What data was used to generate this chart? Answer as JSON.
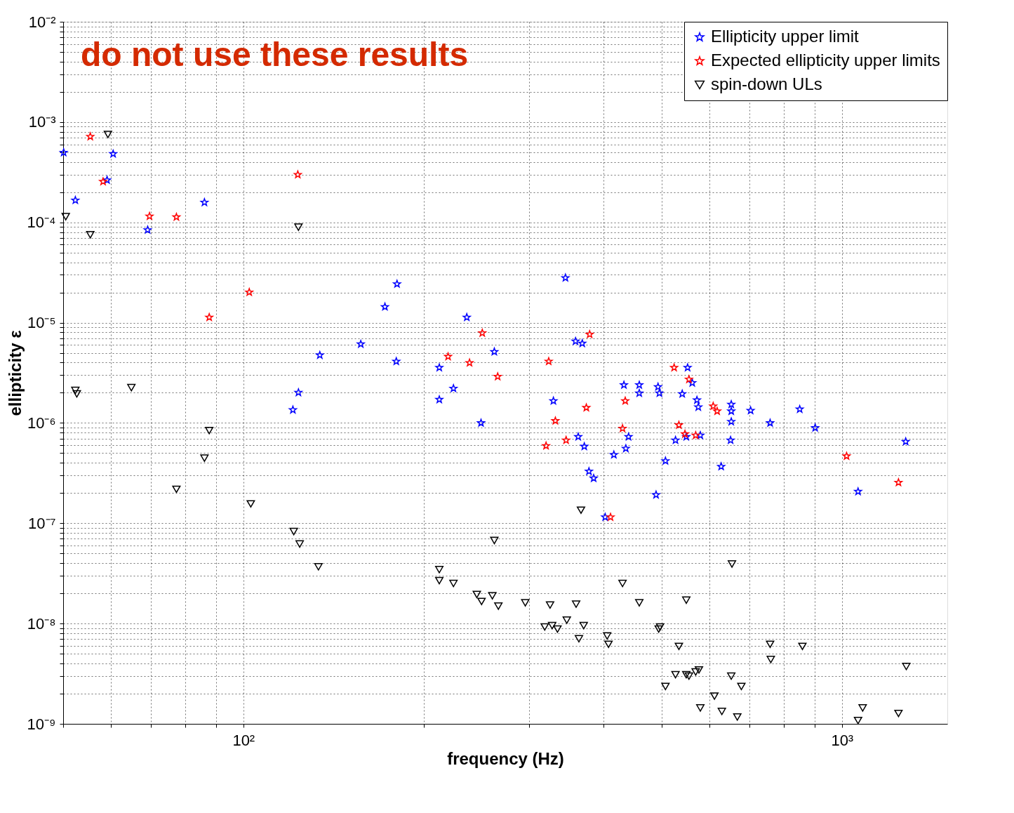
{
  "chart_data": {
    "type": "scatter",
    "xlabel": "frequency (Hz)",
    "ylabel": "ellipticity ε",
    "log": "xy",
    "grid": true,
    "legend": "top right",
    "annotations": [
      "do not use these results"
    ],
    "xlim": [
      50,
      1500
    ],
    "ylim": [
      1e-09,
      0.01
    ],
    "xticks": [
      {
        "value": 50,
        "label": null
      },
      {
        "value": 60,
        "label": null
      },
      {
        "value": 70,
        "label": null
      },
      {
        "value": 80,
        "label": null
      },
      {
        "value": 90,
        "label": null
      },
      {
        "value": 100,
        "label": "10²"
      },
      {
        "value": 200,
        "label": null
      },
      {
        "value": 300,
        "label": null
      },
      {
        "value": 400,
        "label": null
      },
      {
        "value": 500,
        "label": null
      },
      {
        "value": 600,
        "label": null
      },
      {
        "value": 700,
        "label": null
      },
      {
        "value": 800,
        "label": null
      },
      {
        "value": 900,
        "label": null
      },
      {
        "value": 1000,
        "label": "10³"
      }
    ],
    "yticks": [
      {
        "value": 1e-09,
        "label": "10⁻⁹"
      },
      {
        "value": 2e-09,
        "label": null
      },
      {
        "value": 3e-09,
        "label": null
      },
      {
        "value": 4e-09,
        "label": null
      },
      {
        "value": 5e-09,
        "label": null
      },
      {
        "value": 6e-09,
        "label": null
      },
      {
        "value": 7e-09,
        "label": null
      },
      {
        "value": 8e-09,
        "label": null
      },
      {
        "value": 9e-09,
        "label": null
      },
      {
        "value": 1e-08,
        "label": "10⁻⁸"
      },
      {
        "value": 2e-08,
        "label": null
      },
      {
        "value": 3e-08,
        "label": null
      },
      {
        "value": 4e-08,
        "label": null
      },
      {
        "value": 5e-08,
        "label": null
      },
      {
        "value": 6e-08,
        "label": null
      },
      {
        "value": 7e-08,
        "label": null
      },
      {
        "value": 8e-08,
        "label": null
      },
      {
        "value": 9e-08,
        "label": null
      },
      {
        "value": 1e-07,
        "label": "10⁻⁷"
      },
      {
        "value": 2e-07,
        "label": null
      },
      {
        "value": 3e-07,
        "label": null
      },
      {
        "value": 4e-07,
        "label": null
      },
      {
        "value": 5e-07,
        "label": null
      },
      {
        "value": 6e-07,
        "label": null
      },
      {
        "value": 7e-07,
        "label": null
      },
      {
        "value": 8e-07,
        "label": null
      },
      {
        "value": 9e-07,
        "label": null
      },
      {
        "value": 1e-06,
        "label": "10⁻⁶"
      },
      {
        "value": 2e-06,
        "label": null
      },
      {
        "value": 3e-06,
        "label": null
      },
      {
        "value": 4e-06,
        "label": null
      },
      {
        "value": 5e-06,
        "label": null
      },
      {
        "value": 6e-06,
        "label": null
      },
      {
        "value": 7e-06,
        "label": null
      },
      {
        "value": 8e-06,
        "label": null
      },
      {
        "value": 9e-06,
        "label": null
      },
      {
        "value": 1e-05,
        "label": "10⁻⁵"
      },
      {
        "value": 2e-05,
        "label": null
      },
      {
        "value": 3e-05,
        "label": null
      },
      {
        "value": 4e-05,
        "label": null
      },
      {
        "value": 5e-05,
        "label": null
      },
      {
        "value": 6e-05,
        "label": null
      },
      {
        "value": 7e-05,
        "label": null
      },
      {
        "value": 8e-05,
        "label": null
      },
      {
        "value": 9e-05,
        "label": null
      },
      {
        "value": 0.0001,
        "label": "10⁻⁴"
      },
      {
        "value": 0.0002,
        "label": null
      },
      {
        "value": 0.0003,
        "label": null
      },
      {
        "value": 0.0004,
        "label": null
      },
      {
        "value": 0.0005,
        "label": null
      },
      {
        "value": 0.0006,
        "label": null
      },
      {
        "value": 0.0007,
        "label": null
      },
      {
        "value": 0.0008,
        "label": null
      },
      {
        "value": 0.0009,
        "label": null
      },
      {
        "value": 0.001,
        "label": "10⁻³"
      },
      {
        "value": 0.002,
        "label": null
      },
      {
        "value": 0.003,
        "label": null
      },
      {
        "value": 0.004,
        "label": null
      },
      {
        "value": 0.005,
        "label": null
      },
      {
        "value": 0.006,
        "label": null
      },
      {
        "value": 0.007,
        "label": null
      },
      {
        "value": 0.008,
        "label": null
      },
      {
        "value": 0.009,
        "label": null
      },
      {
        "value": 0.01,
        "label": "10⁻²"
      }
    ],
    "series": [
      {
        "name": "Ellipticity upper limit",
        "color": "#0000ff",
        "marker": "star",
        "x": [
          50.1,
          52.4,
          59.2,
          60.6,
          69.2,
          86.1,
          123.6,
          121.0,
          134.2,
          157.1,
          172.4,
          180.6,
          180.1,
          212.5,
          212.5,
          224.4,
          236.2,
          249.5,
          262.6,
          329.6,
          345.2,
          358.9,
          362.6,
          368.3,
          371.2,
          377.9,
          384.8,
          402.2,
          415.9,
          432.3,
          435.5,
          440.1,
          458.6,
          458.6,
          489.2,
          492.9,
          495.5,
          507.2,
          527.2,
          541.0,
          549.5,
          552.3,
          562.3,
          572.5,
          575.5,
          580.0,
          628.5,
          651.6,
          653.3,
          653.3,
          653.3,
          703.8,
          758.6,
          850.1,
          902.2,
          1064,
          1278
        ],
        "values": [
          0.000497,
          0.000166,
          0.000264,
          0.000482,
          8.4e-05,
          0.000158,
          2.01e-06,
          1.35e-06,
          4.74e-06,
          6.11e-06,
          1.44e-05,
          2.43e-05,
          4.11e-06,
          3.56e-06,
          1.71e-06,
          2.21e-06,
          1.13e-05,
          1e-06,
          5.13e-06,
          1.66e-06,
          2.8e-05,
          6.52e-06,
          7.28e-07,
          6.21e-06,
          5.83e-07,
          3.29e-07,
          2.81e-07,
          1.15e-07,
          4.82e-07,
          2.39e-06,
          5.56e-07,
          7.28e-07,
          2.39e-06,
          1.98e-06,
          1.92e-07,
          2.29e-06,
          1.98e-06,
          4.18e-07,
          6.73e-07,
          1.95e-06,
          7.28e-07,
          3.56e-06,
          2.51e-06,
          1.69e-06,
          1.44e-06,
          7.52e-07,
          3.68e-07,
          6.73e-07,
          1.53e-06,
          1.31e-06,
          1.03e-06,
          1.33e-06,
          1e-06,
          1.37e-06,
          8.95e-07,
          2.07e-07,
          6.52e-07
        ]
      },
      {
        "name": "Expected ellipticity upper limits",
        "color": "#ff0000",
        "marker": "star",
        "x": [
          55.5,
          58.3,
          69.7,
          77.3,
          87.7,
          102.3,
          123.3,
          219.8,
          238.7,
          250.7,
          266.0,
          320.4,
          323.7,
          332.1,
          346.1,
          374.1,
          378.9,
          410.6,
          430.0,
          434.5,
          524.4,
          534.1,
          546.7,
          555.2,
          569.7,
          609.4,
          618.8,
          1018,
          1243
        ],
        "values": [
          0.000716,
          0.000255,
          0.000115,
          0.000113,
          1.13e-05,
          2.01e-05,
          0.000299,
          4.59e-06,
          3.98e-06,
          7.88e-06,
          2.9e-06,
          5.92e-07,
          4.11e-06,
          1.05e-06,
          6.73e-07,
          1.42e-06,
          7.64e-06,
          1.15e-07,
          8.81e-07,
          1.66e-06,
          3.56e-06,
          9.53e-07,
          7.76e-07,
          2.72e-06,
          7.52e-07,
          1.47e-06,
          1.31e-06,
          4.67e-07,
          2.55e-07
        ]
      },
      {
        "name": "spin-down ULs",
        "color": "#000000",
        "marker": "triangle",
        "x": [
          50.5,
          55.5,
          59.4,
          52.4,
          52.7,
          65.0,
          86.1,
          87.7,
          77.3,
          102.9,
          121.4,
          124.2,
          123.6,
          133.5,
          212.5,
          212.5,
          224.4,
          245.5,
          250.0,
          260.6,
          266.7,
          295.8,
          318.8,
          325.4,
          328.0,
          334.8,
          347.0,
          359.7,
          363.6,
          370.3,
          405.3,
          407.4,
          366.5,
          262.6,
          430.0,
          458.6,
          496.8,
          494.2,
          507.2,
          527.2,
          534.1,
          549.5,
          549.5,
          555.2,
          569.7,
          576.9,
          580.0,
          612.4,
          630.1,
          653.3,
          655.0,
          668.7,
          679.2,
          758.6,
          760.6,
          858.9,
          1064,
          1083,
          1243,
          1281
        ],
        "values": [
          0.000114,
          7.52e-05,
          0.000752,
          2.11e-06,
          1.95e-06,
          2.25e-06,
          4.45e-07,
          8.4e-07,
          2.18e-07,
          1.56e-07,
          8.26e-08,
          6.21e-08,
          8.95e-05,
          3.68e-08,
          3.45e-08,
          2.68e-08,
          2.51e-08,
          1.95e-08,
          1.66e-08,
          1.89e-08,
          1.49e-08,
          1.61e-08,
          9.25e-09,
          1.53e-08,
          9.53e-09,
          8.81e-09,
          1.08e-08,
          1.56e-08,
          7.05e-09,
          9.53e-09,
          7.52e-09,
          6.21e-09,
          1.35e-07,
          6.73e-08,
          2.51e-08,
          1.61e-08,
          9.25e-09,
          8.81e-09,
          2.36e-09,
          3.09e-09,
          5.92e-09,
          3.09e-09,
          1.71e-08,
          2.99e-09,
          3.29e-09,
          3.45e-09,
          1.44e-09,
          1.89e-09,
          1.33e-09,
          2.99e-09,
          3.92e-08,
          1.17e-09,
          2.36e-09,
          6.21e-09,
          4.38e-09,
          5.92e-09,
          1.08e-09,
          1.44e-09,
          1.27e-09,
          3.73e-09
        ]
      }
    ]
  }
}
